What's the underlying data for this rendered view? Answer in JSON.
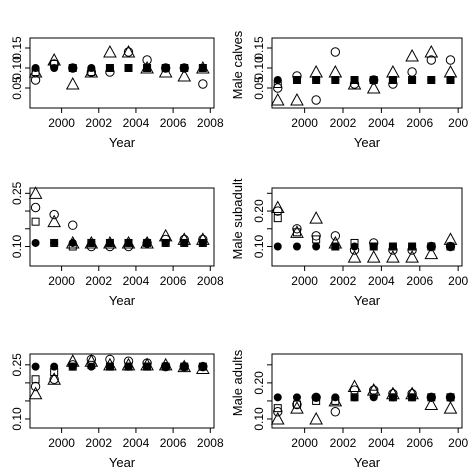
{
  "chart_data": [
    {
      "type": "scatter",
      "ylabel": "",
      "xlabel": "Year",
      "ylim": [
        0.0,
        0.175
      ],
      "yticks": [
        "0.05",
        "0.10",
        "0.15"
      ],
      "yticks_values": [
        0.05,
        0.1,
        0.15
      ],
      "xticks": [
        "2000",
        "2002",
        "2004",
        "2006",
        "2008"
      ],
      "xlim": [
        1998.3,
        2008.2
      ],
      "series": [
        {
          "marker": "filled-circle",
          "x": [
            1998.6,
            1999.6,
            2000.6,
            2001.6,
            2002.6,
            2003.6,
            2004.6,
            2005.6,
            2006.6,
            2007.6
          ],
          "y": [
            0.1,
            0.1,
            0.1,
            0.1,
            0.1,
            0.1,
            0.1,
            0.1,
            0.1,
            0.1
          ]
        },
        {
          "marker": "triangle",
          "x": [
            1998.6,
            1999.6,
            2000.6,
            2001.6,
            2002.6,
            2003.6,
            2004.6,
            2005.6,
            2006.6,
            2007.6
          ],
          "y": [
            0.09,
            0.12,
            0.06,
            0.09,
            0.14,
            0.14,
            0.1,
            0.09,
            0.08,
            0.1
          ]
        },
        {
          "marker": "open-circle",
          "x": [
            1998.6,
            1999.6,
            2000.6,
            2001.6,
            2002.6,
            2003.6,
            2004.6,
            2005.6,
            2006.6,
            2007.6
          ],
          "y": [
            0.07,
            0.11,
            0.1,
            0.09,
            0.09,
            0.14,
            0.12,
            0.1,
            0.1,
            0.06
          ]
        },
        {
          "marker": "square",
          "x": [
            1998.6,
            1999.6,
            2000.6,
            2001.6,
            2002.6,
            2003.6,
            2004.6,
            2005.6,
            2006.6,
            2007.6
          ],
          "y": [
            0.09,
            0.11,
            0.1,
            0.09,
            0.1,
            0.1,
            0.1,
            0.1,
            0.1,
            0.1
          ]
        }
      ]
    },
    {
      "type": "scatter",
      "ylabel": "Male calves",
      "xlabel": "Year",
      "ylim": [
        0.0,
        0.175
      ],
      "yticks": [
        "0.05",
        "0.10",
        "0.15"
      ],
      "yticks_values": [
        0.05,
        0.1,
        0.15
      ],
      "xticks": [
        "2000",
        "2002",
        "2004",
        "2006",
        "200"
      ],
      "xlim": [
        1998.3,
        2008.2
      ],
      "series": [
        {
          "marker": "filled-circle",
          "x": [
            1998.6,
            1999.6,
            2000.6,
            2001.6,
            2002.6,
            2003.6,
            2004.6,
            2005.6,
            2006.6,
            2007.6
          ],
          "y": [
            0.07,
            0.07,
            0.07,
            0.07,
            0.07,
            0.07,
            0.07,
            0.07,
            0.07,
            0.07
          ]
        },
        {
          "marker": "triangle",
          "x": [
            1998.6,
            1999.6,
            2000.6,
            2001.6,
            2002.6,
            2003.6,
            2004.6,
            2005.6,
            2006.6,
            2007.6
          ],
          "y": [
            0.02,
            0.02,
            0.09,
            0.09,
            0.06,
            0.05,
            0.09,
            0.13,
            0.14,
            0.09
          ]
        },
        {
          "marker": "open-circle",
          "x": [
            1998.6,
            1999.6,
            2000.6,
            2001.6,
            2002.6,
            2003.6,
            2004.6,
            2005.6,
            2006.6,
            2007.6
          ],
          "y": [
            0.05,
            0.08,
            0.02,
            0.14,
            0.06,
            0.07,
            0.06,
            0.09,
            0.12,
            0.12
          ]
        },
        {
          "marker": "square",
          "x": [
            1998.6,
            1999.6,
            2000.6,
            2001.6,
            2002.6,
            2003.6,
            2004.6,
            2005.6,
            2006.6,
            2007.6
          ],
          "y": [
            0.06,
            0.07,
            0.07,
            0.07,
            0.07,
            0.07,
            0.07,
            0.07,
            0.07,
            0.07
          ]
        }
      ]
    },
    {
      "type": "scatter",
      "ylabel": "",
      "xlabel": "Year",
      "ylim": [
        0.045,
        0.265
      ],
      "yticks": [
        "0.10",
        "0.15",
        "0.20",
        "0.25"
      ],
      "ytick_labels_shown": [
        "0.10",
        "0.25"
      ],
      "yticks_values": [
        0.1,
        0.15,
        0.2,
        0.25
      ],
      "xticks": [
        "2000",
        "2002",
        "2004",
        "2006",
        "2008"
      ],
      "xlim": [
        1998.3,
        2008.2
      ],
      "series": [
        {
          "marker": "filled-circle",
          "x": [
            1998.6,
            1999.6,
            2000.6,
            2001.6,
            2002.6,
            2003.6,
            2004.6,
            2005.6,
            2006.6,
            2007.6
          ],
          "y": [
            0.11,
            0.11,
            0.11,
            0.11,
            0.11,
            0.11,
            0.11,
            0.11,
            0.11,
            0.11
          ]
        },
        {
          "marker": "triangle",
          "x": [
            1998.6,
            1999.6,
            2000.6,
            2001.6,
            2002.6,
            2003.6,
            2004.6,
            2005.6,
            2006.6,
            2007.6
          ],
          "y": [
            0.25,
            0.17,
            0.11,
            0.11,
            0.11,
            0.11,
            0.11,
            0.13,
            0.12,
            0.12
          ]
        },
        {
          "marker": "open-circle",
          "x": [
            1998.6,
            1999.6,
            2000.6,
            2001.6,
            2002.6,
            2003.6,
            2004.6,
            2005.6,
            2006.6,
            2007.6
          ],
          "y": [
            0.21,
            0.19,
            0.16,
            0.1,
            0.1,
            0.1,
            0.11,
            0.12,
            0.12,
            0.12
          ]
        },
        {
          "marker": "square",
          "x": [
            1998.6,
            1999.6,
            2000.6,
            2001.6,
            2002.6,
            2003.6,
            2004.6,
            2005.6,
            2006.6,
            2007.6
          ],
          "y": [
            0.17,
            0.11,
            0.1,
            0.11,
            0.11,
            0.11,
            0.11,
            0.11,
            0.11,
            0.11
          ]
        }
      ]
    },
    {
      "type": "scatter",
      "ylabel": "Male subadult",
      "xlabel": "Year",
      "ylim": [
        0.045,
        0.265
      ],
      "yticks": [
        "0.10",
        "0.15",
        "0.20",
        "0.25"
      ],
      "ytick_labels_shown": [
        "0.10",
        "0.20"
      ],
      "yticks_values": [
        0.1,
        0.15,
        0.2,
        0.25
      ],
      "xticks": [
        "2000",
        "2002",
        "2004",
        "2006",
        "200"
      ],
      "xlim": [
        1998.3,
        2008.2
      ],
      "series": [
        {
          "marker": "filled-circle",
          "x": [
            1998.6,
            1999.6,
            2000.6,
            2001.6,
            2002.6,
            2003.6,
            2004.6,
            2005.6,
            2006.6,
            2007.6
          ],
          "y": [
            0.1,
            0.1,
            0.1,
            0.1,
            0.1,
            0.1,
            0.1,
            0.1,
            0.1,
            0.1
          ]
        },
        {
          "marker": "triangle",
          "x": [
            1998.6,
            1999.6,
            2000.6,
            2001.6,
            2002.6,
            2003.6,
            2004.6,
            2005.6,
            2006.6,
            2007.6
          ],
          "y": [
            0.21,
            0.14,
            0.18,
            0.11,
            0.07,
            0.07,
            0.07,
            0.07,
            0.08,
            0.12
          ]
        },
        {
          "marker": "open-circle",
          "x": [
            1998.6,
            1999.6,
            2000.6,
            2001.6,
            2002.6,
            2003.6,
            2004.6,
            2005.6,
            2006.6,
            2007.6
          ],
          "y": [
            0.2,
            0.15,
            0.13,
            0.13,
            0.09,
            0.11,
            0.09,
            0.09,
            0.1,
            0.1
          ]
        },
        {
          "marker": "square",
          "x": [
            1998.6,
            1999.6,
            2000.6,
            2001.6,
            2002.6,
            2003.6,
            2004.6,
            2005.6,
            2006.6,
            2007.6
          ],
          "y": [
            0.18,
            0.14,
            0.12,
            0.1,
            0.11,
            0.1,
            0.1,
            0.1,
            0.1,
            0.1
          ]
        }
      ]
    },
    {
      "type": "scatter",
      "ylabel": "",
      "xlabel": "Year",
      "ylim": [
        0.075,
        0.28
      ],
      "yticks": [
        "0.10",
        "0.15",
        "0.20",
        "0.25"
      ],
      "ytick_labels_shown": [
        "0.10",
        "0.25"
      ],
      "yticks_values": [
        0.1,
        0.15,
        0.2,
        0.25
      ],
      "xticks": [
        "2000",
        "2002",
        "2004",
        "2006",
        "2008"
      ],
      "xlim": [
        1998.3,
        2008.2
      ],
      "series": [
        {
          "marker": "filled-circle",
          "x": [
            1998.6,
            1999.6,
            2000.6,
            2001.6,
            2002.6,
            2003.6,
            2004.6,
            2005.6,
            2006.6,
            2007.6
          ],
          "y": [
            0.245,
            0.245,
            0.245,
            0.245,
            0.245,
            0.245,
            0.245,
            0.245,
            0.245,
            0.245
          ]
        },
        {
          "marker": "triangle",
          "x": [
            1998.6,
            1999.6,
            2000.6,
            2001.6,
            2002.6,
            2003.6,
            2004.6,
            2005.6,
            2006.6,
            2007.6
          ],
          "y": [
            0.17,
            0.21,
            0.26,
            0.26,
            0.25,
            0.25,
            0.25,
            0.25,
            0.245,
            0.24
          ]
        },
        {
          "marker": "open-circle",
          "x": [
            1998.6,
            1999.6,
            2000.6,
            2001.6,
            2002.6,
            2003.6,
            2004.6,
            2005.6,
            2006.6,
            2007.6
          ],
          "y": [
            0.19,
            0.21,
            0.25,
            0.265,
            0.265,
            0.26,
            0.255,
            0.245,
            0.245,
            0.245
          ]
        },
        {
          "marker": "square",
          "x": [
            1998.6,
            1999.6,
            2000.6,
            2001.6,
            2002.6,
            2003.6,
            2004.6,
            2005.6,
            2006.6,
            2007.6
          ],
          "y": [
            0.21,
            0.23,
            0.245,
            0.25,
            0.245,
            0.245,
            0.245,
            0.245,
            0.245,
            0.245
          ]
        }
      ]
    },
    {
      "type": "scatter",
      "ylabel": "Male adults",
      "xlabel": "Year",
      "ylim": [
        0.075,
        0.28
      ],
      "yticks": [
        "0.10",
        "0.15",
        "0.20",
        "0.25"
      ],
      "ytick_labels_shown": [
        "0.10",
        "0.20"
      ],
      "yticks_values": [
        0.1,
        0.15,
        0.2,
        0.25
      ],
      "xticks": [
        "2000",
        "2002",
        "2004",
        "2006",
        "200"
      ],
      "xlim": [
        1998.3,
        2008.2
      ],
      "series": [
        {
          "marker": "filled-circle",
          "x": [
            1998.6,
            1999.6,
            2000.6,
            2001.6,
            2002.6,
            2003.6,
            2004.6,
            2005.6,
            2006.6,
            2007.6
          ],
          "y": [
            0.16,
            0.16,
            0.16,
            0.16,
            0.16,
            0.16,
            0.16,
            0.16,
            0.16,
            0.16
          ]
        },
        {
          "marker": "triangle",
          "x": [
            1998.6,
            1999.6,
            2000.6,
            2001.6,
            2002.6,
            2003.6,
            2004.6,
            2005.6,
            2006.6,
            2007.6
          ],
          "y": [
            0.1,
            0.13,
            0.1,
            0.15,
            0.19,
            0.18,
            0.17,
            0.17,
            0.14,
            0.13
          ]
        },
        {
          "marker": "open-circle",
          "x": [
            1998.6,
            1999.6,
            2000.6,
            2001.6,
            2002.6,
            2003.6,
            2004.6,
            2005.6,
            2006.6,
            2007.6
          ],
          "y": [
            0.12,
            0.14,
            0.16,
            0.12,
            0.18,
            0.18,
            0.17,
            0.17,
            0.16,
            0.16
          ]
        },
        {
          "marker": "square",
          "x": [
            1998.6,
            1999.6,
            2000.6,
            2001.6,
            2002.6,
            2003.6,
            2004.6,
            2005.6,
            2006.6,
            2007.6
          ],
          "y": [
            0.13,
            0.14,
            0.15,
            0.15,
            0.16,
            0.17,
            0.16,
            0.16,
            0.16,
            0.16
          ]
        }
      ]
    }
  ]
}
